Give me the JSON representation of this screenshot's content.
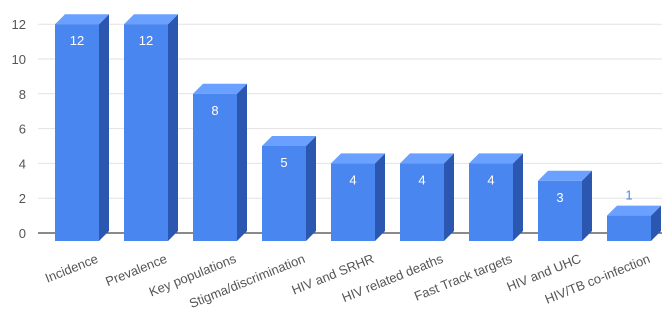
{
  "chart_data": {
    "type": "bar",
    "categories": [
      "Incidence",
      "Prevalence",
      "Key populations",
      "Stigma/discrimination",
      "HIV and SRHR",
      "HIV related deaths",
      "Fast Track targets",
      "HIV and UHC",
      "HIV/TB co-infection"
    ],
    "values": [
      12,
      12,
      8,
      5,
      4,
      4,
      4,
      3,
      1
    ],
    "value_labels": [
      "12",
      "12",
      "8",
      "5",
      "4",
      "4",
      "4",
      "3",
      "1"
    ],
    "yticks": [
      "0",
      "2",
      "4",
      "6",
      "8",
      "10",
      "12"
    ],
    "ylim": [
      0,
      12
    ],
    "grid": true,
    "colors": {
      "front": "#4a86f0",
      "side": "#2c57b0",
      "top": "#6aa0ff",
      "label_inside": "#ffffff",
      "label_outside": "#4a86f0"
    }
  }
}
